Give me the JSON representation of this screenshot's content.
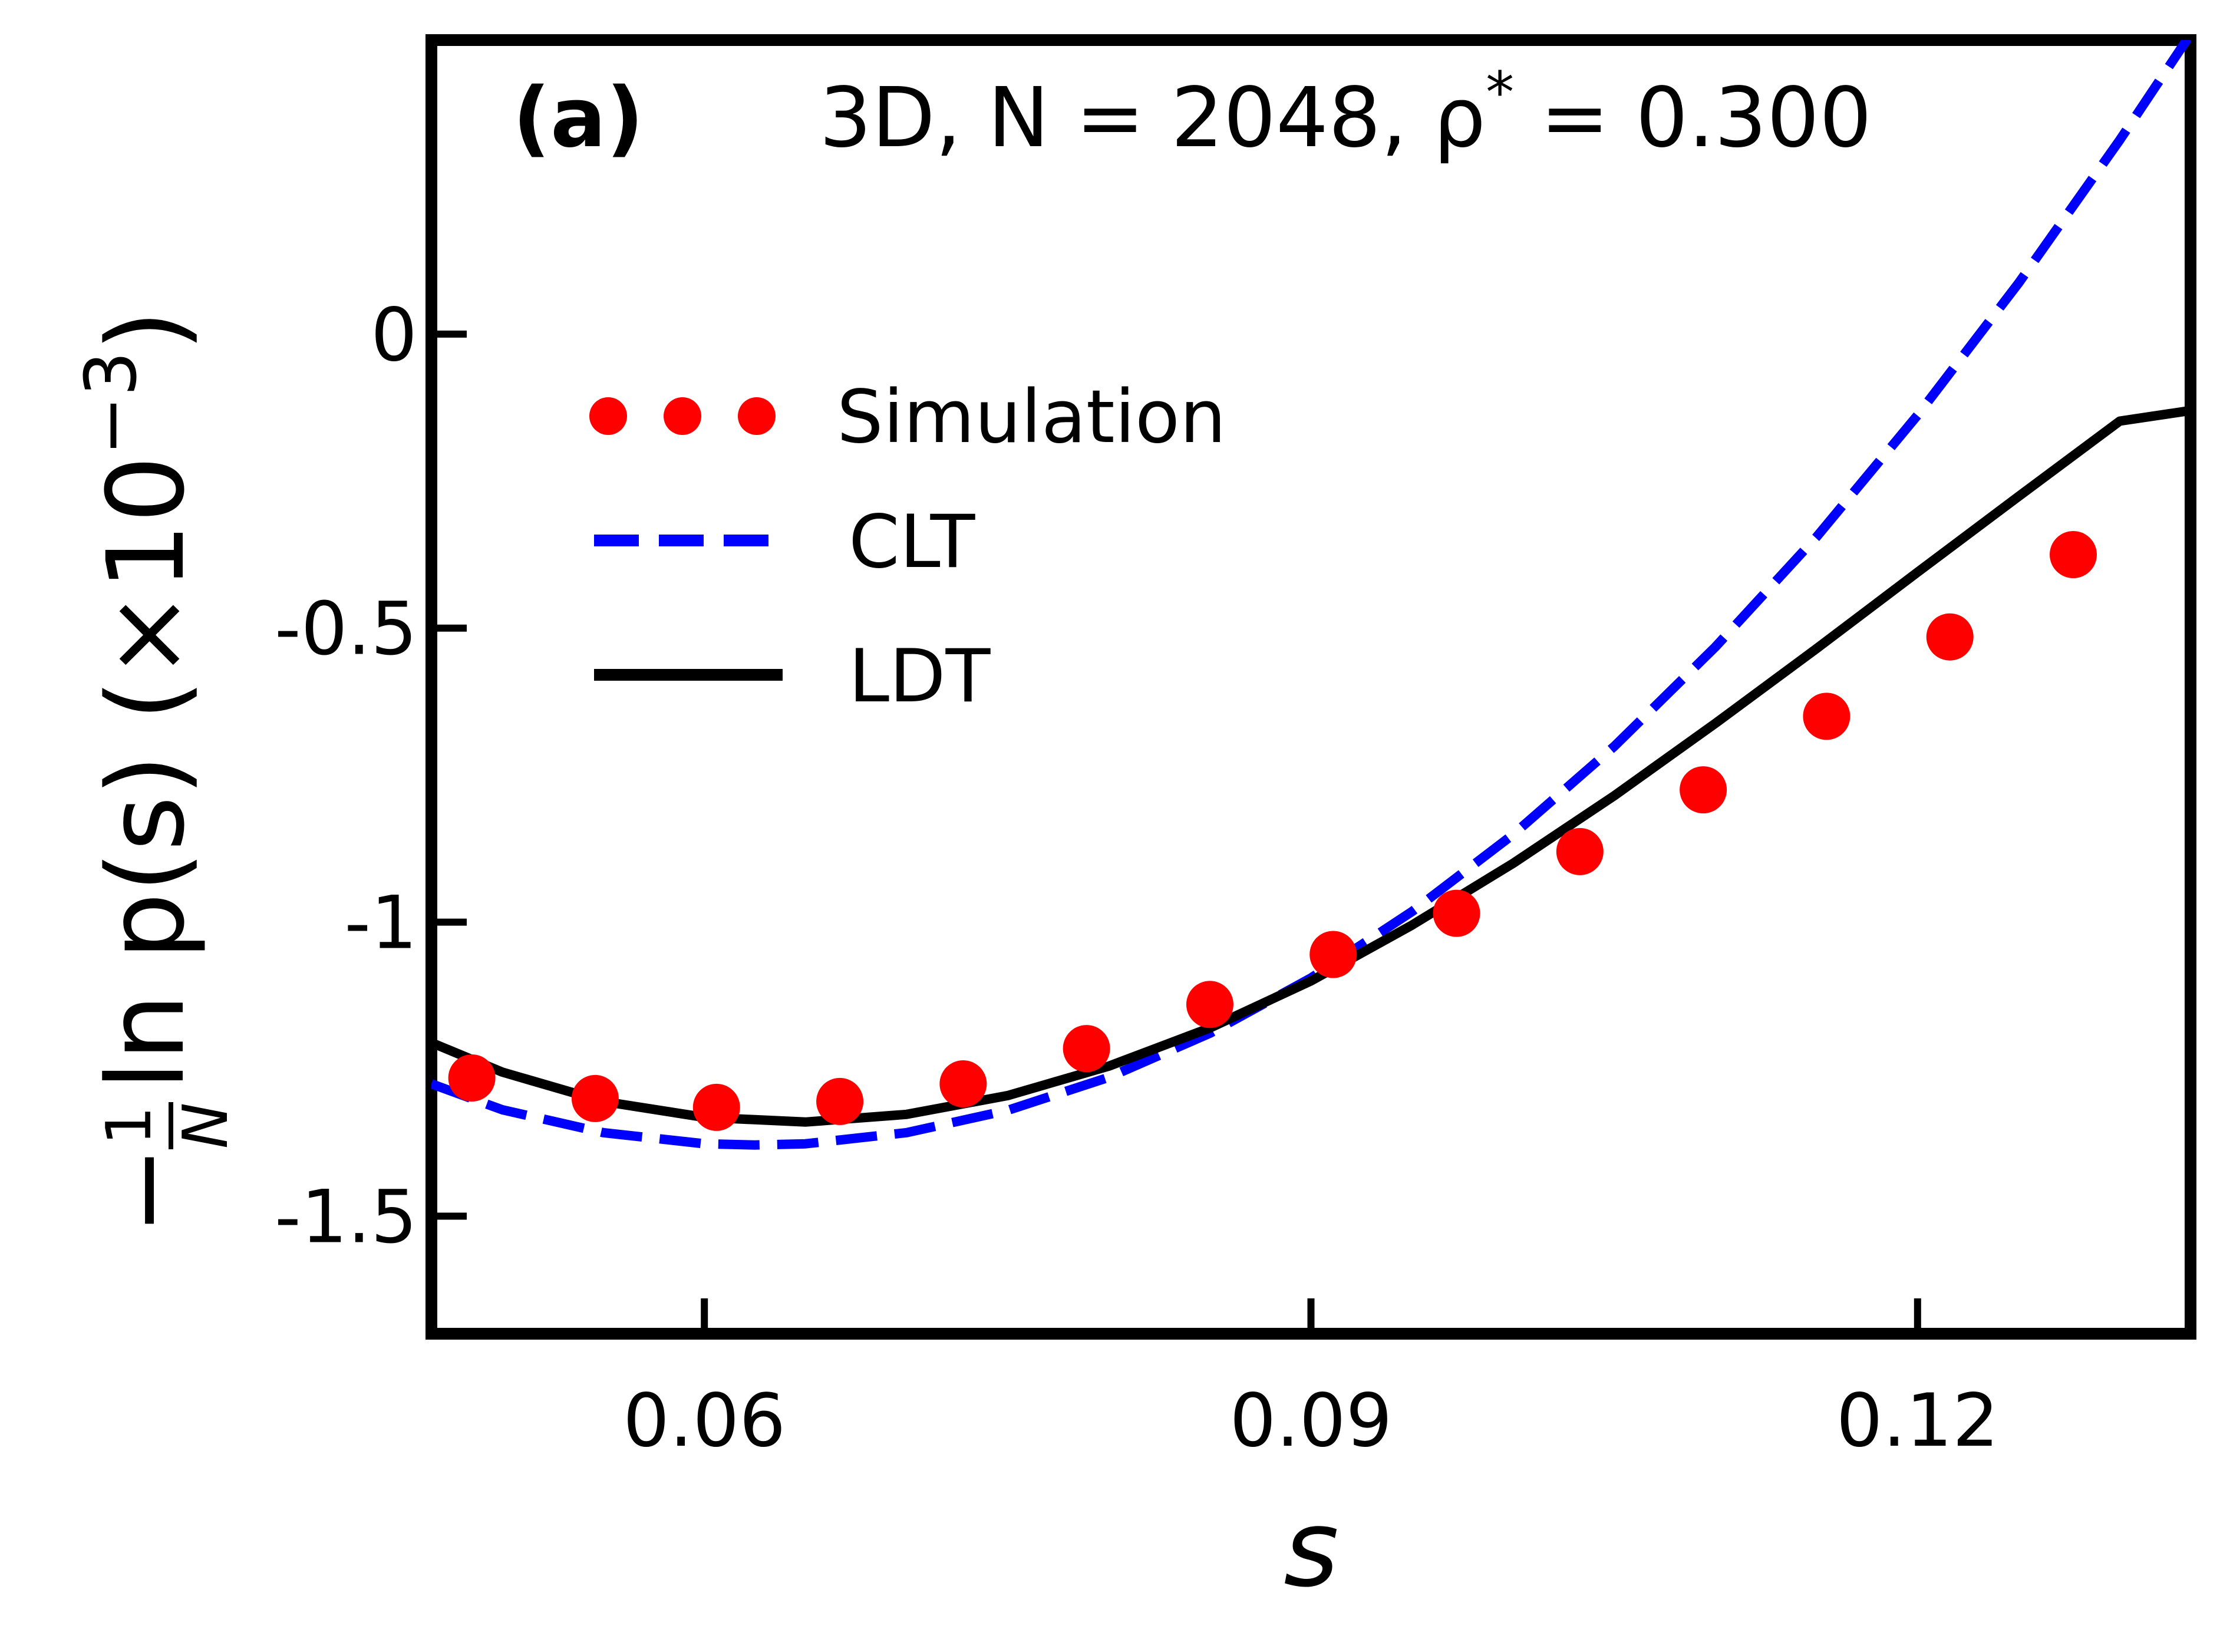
{
  "chart_data": {
    "type": "line",
    "panel_label": "(a)",
    "annotation": {
      "prefix": "3D, N = 2048, ρ",
      "sup": "*",
      "suffix": " = 0.300"
    },
    "xlabel": "s",
    "ylabel": {
      "minus": "−",
      "num": "1",
      "den": "N",
      "main": "ln p(s) (×10",
      "sup": "−3",
      "close": ")"
    },
    "xlim": [
      0.0465,
      0.1335
    ],
    "ylim": [
      -1.7,
      0.5
    ],
    "xticks": [
      0.06,
      0.09,
      0.12
    ],
    "xtick_labels": [
      "0.06",
      "0.09",
      "0.12"
    ],
    "yticks": [
      0,
      -0.5,
      -1,
      -1.5
    ],
    "ytick_labels": [
      "0",
      "-0.5",
      "-1",
      "-1.5"
    ],
    "grid": false,
    "legend": {
      "placement": "upper-left",
      "entries": [
        "Simulation",
        "CLT",
        "LDT"
      ]
    },
    "series": [
      {
        "name": "Simulation",
        "style": "markers",
        "color": "#ff0000",
        "x": [
          0.0485,
          0.0546,
          0.0606,
          0.0667,
          0.0728,
          0.0789,
          0.085,
          0.0911,
          0.0972,
          0.1033,
          0.1094,
          0.1155,
          0.1216,
          0.1277
        ],
        "y": [
          -1.265,
          -1.3,
          -1.315,
          -1.305,
          -1.275,
          -1.215,
          -1.14,
          -1.055,
          -0.985,
          -0.88,
          -0.775,
          -0.65,
          -0.515,
          -0.375
        ]
      },
      {
        "name": "CLT",
        "style": "dashed",
        "color": "#0000ff",
        "x": [
          0.0465,
          0.05,
          0.055,
          0.06,
          0.0625,
          0.065,
          0.07,
          0.075,
          0.08,
          0.085,
          0.09,
          0.095,
          0.1,
          0.105,
          0.11,
          0.115,
          0.12,
          0.125,
          0.13,
          0.1335
        ],
        "y": [
          -1.275,
          -1.319,
          -1.358,
          -1.377,
          -1.379,
          -1.377,
          -1.358,
          -1.32,
          -1.264,
          -1.189,
          -1.095,
          -0.982,
          -0.851,
          -0.701,
          -0.532,
          -0.345,
          -0.138,
          0.087,
          0.33,
          0.51
        ]
      },
      {
        "name": "LDT",
        "style": "solid",
        "color": "#000000",
        "x": [
          0.0465,
          0.05,
          0.055,
          0.06,
          0.065,
          0.07,
          0.075,
          0.08,
          0.085,
          0.09,
          0.095,
          0.1,
          0.105,
          0.11,
          0.115,
          0.12,
          0.125,
          0.13,
          0.1335
        ],
        "y": [
          -1.205,
          -1.255,
          -1.305,
          -1.332,
          -1.34,
          -1.327,
          -1.295,
          -1.245,
          -1.18,
          -1.1,
          -1.005,
          -0.9,
          -0.785,
          -0.662,
          -0.535,
          -0.405,
          -0.276,
          -0.148,
          -0.13
        ]
      }
    ]
  }
}
